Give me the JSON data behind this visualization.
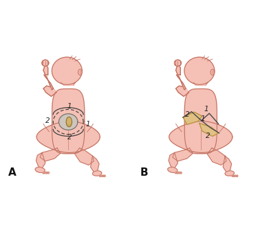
{
  "figure_label_A": "A",
  "figure_label_B": "B",
  "bg_color": "#ffffff",
  "skin_fill": "#f5c0b5",
  "skin_light": "#fad5cc",
  "skin_outline": "#c07060",
  "skin_shadow": "#e8a090",
  "wound_grey": "#c8c0b8",
  "wound_grey2": "#b8b0a8",
  "wound_tan": "#c8a868",
  "wound_tan_light": "#ddc090",
  "wound_tan_dark": "#a88040",
  "incision_color": "#505050",
  "label_color": "#222222",
  "flap_fill": "#e0c080",
  "flap_edge": "#b89040",
  "figsize": [
    3.91,
    3.38
  ],
  "dpi": 100
}
